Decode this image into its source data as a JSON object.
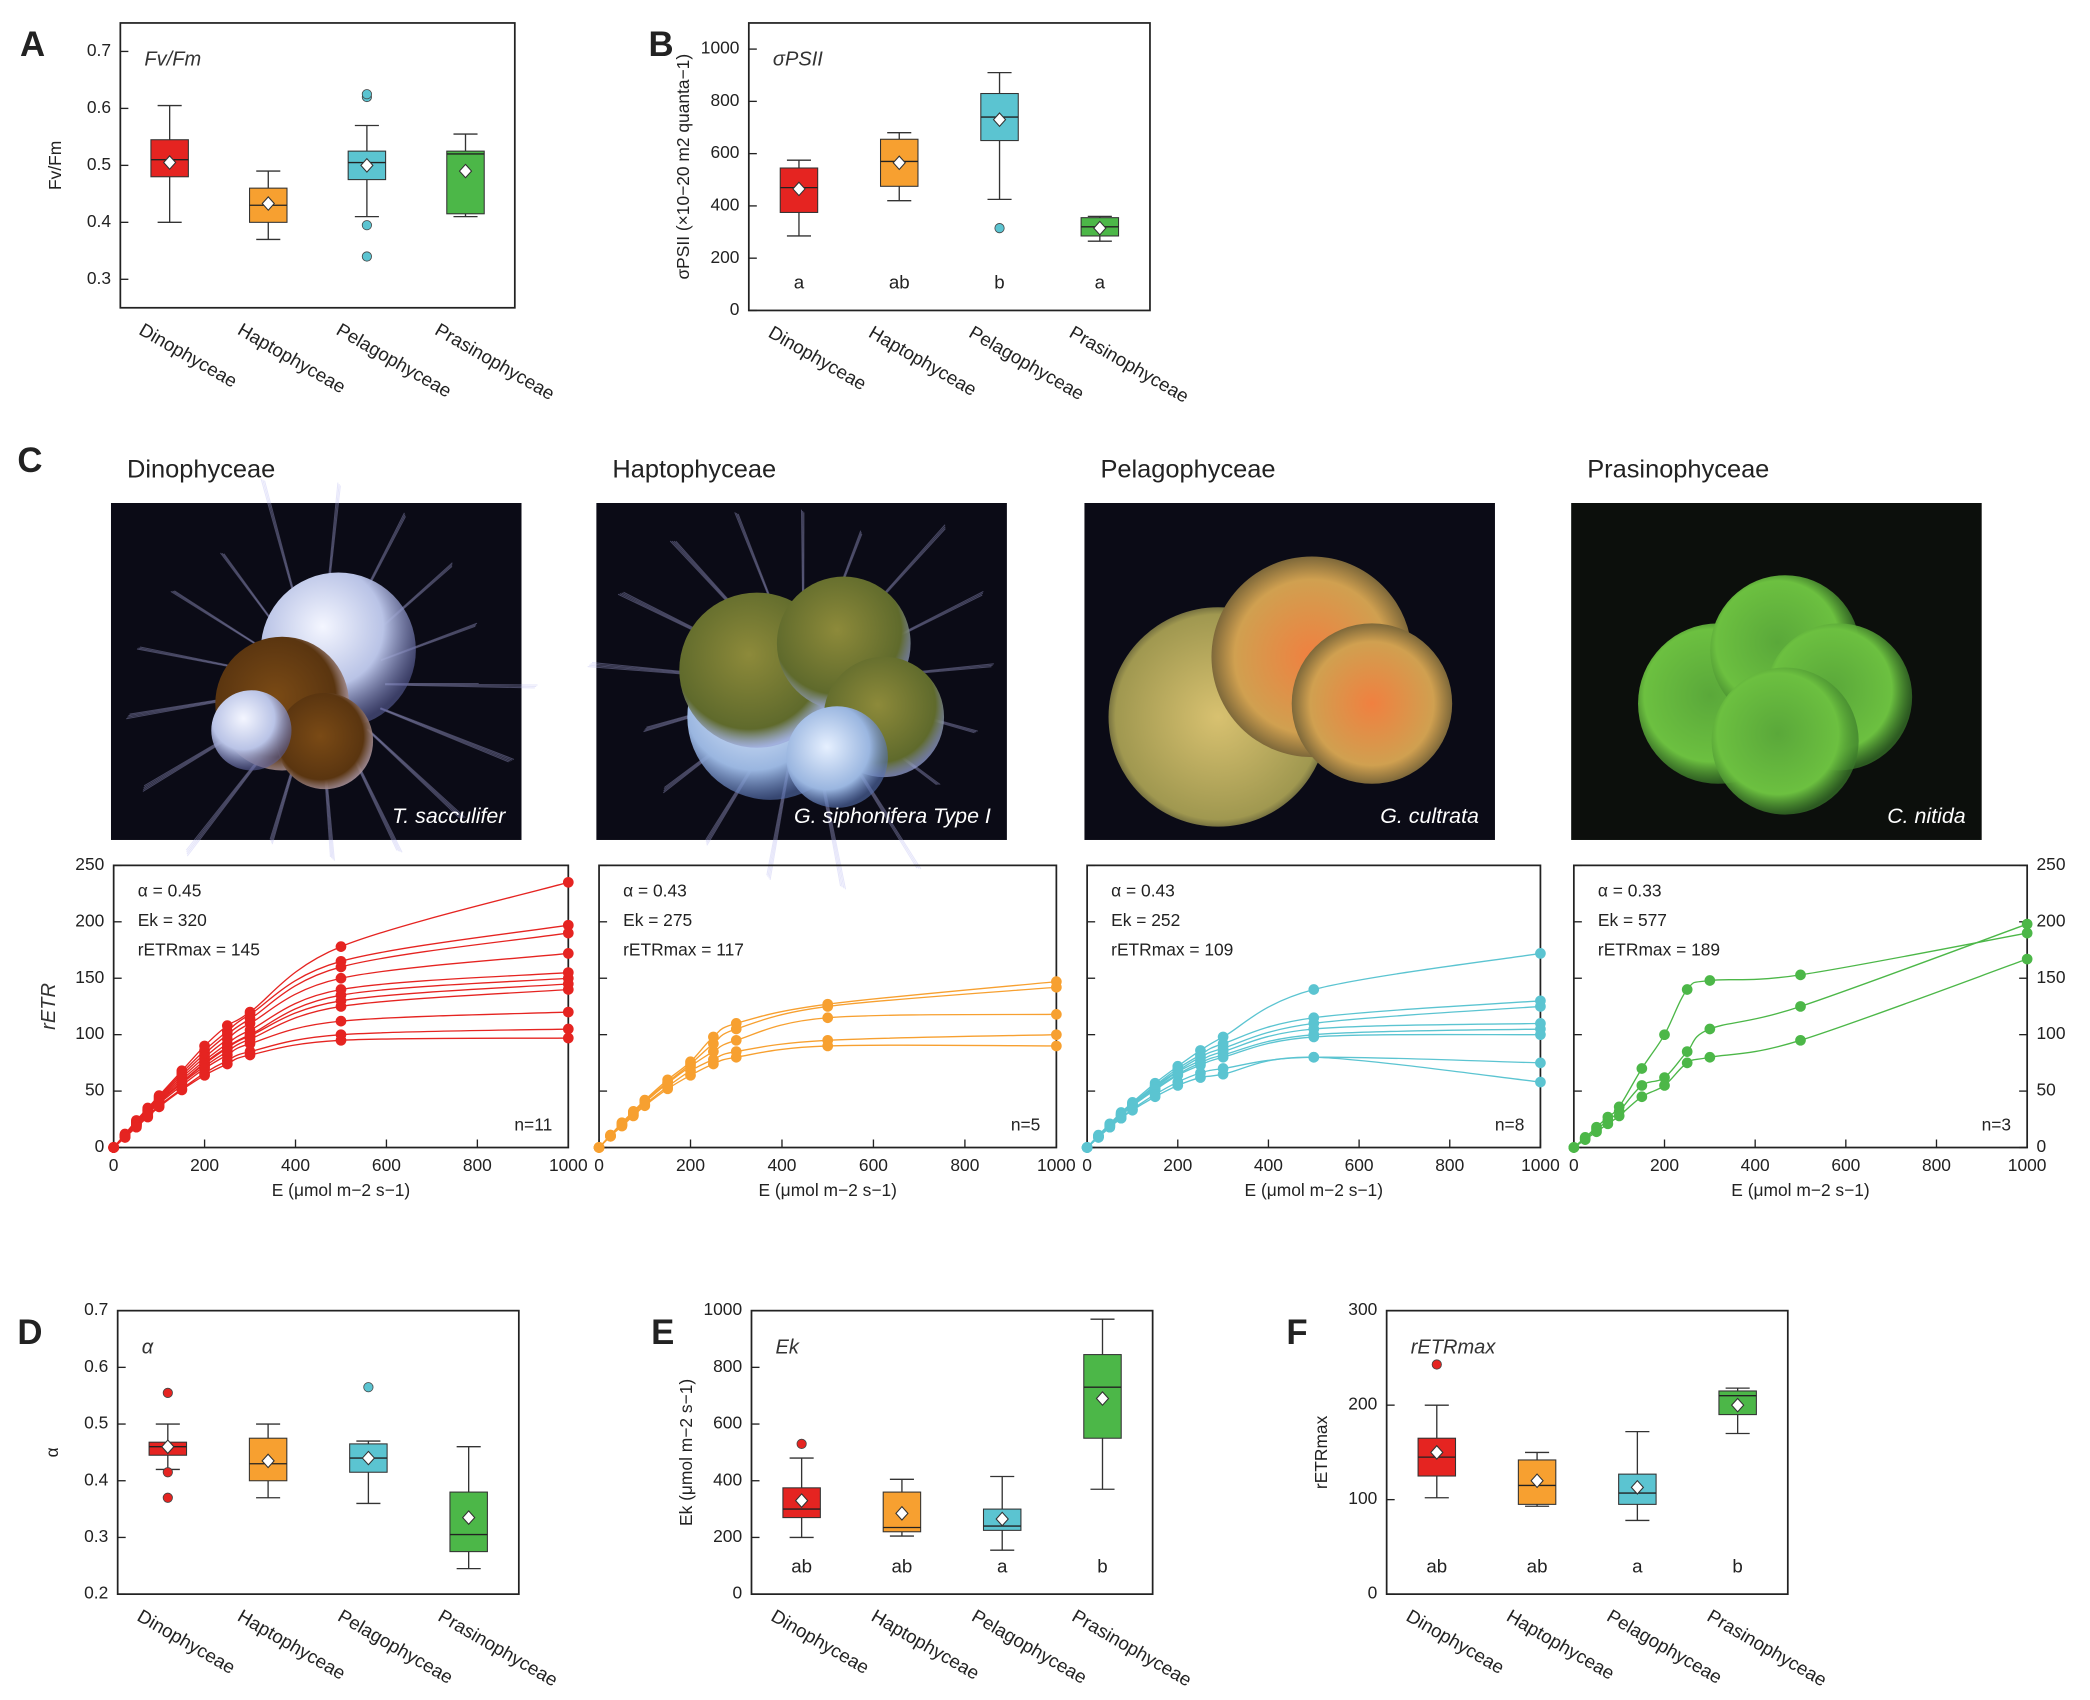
{
  "chart_data": [
    {
      "type": "box",
      "panel": "A",
      "annotation": "Fv/Fm",
      "ylabel": "Fv/Fm",
      "categories": [
        "Dinophyceae",
        "Haptophyceae",
        "Pelagophyceae",
        "Prasinophyceae"
      ],
      "colors": [
        "#e52421",
        "#f7a030",
        "#5bc4d1",
        "#4cb748"
      ],
      "ylim": [
        0.25,
        0.75
      ],
      "yticks": [
        0.3,
        0.4,
        0.5,
        0.6,
        0.7
      ],
      "boxes": [
        {
          "whislo": 0.4,
          "q1": 0.48,
          "med": 0.51,
          "q3": 0.545,
          "whishi": 0.605,
          "mean": 0.505,
          "fliers": []
        },
        {
          "whislo": 0.37,
          "q1": 0.4,
          "med": 0.43,
          "q3": 0.46,
          "whishi": 0.49,
          "mean": 0.433,
          "fliers": []
        },
        {
          "whislo": 0.41,
          "q1": 0.475,
          "med": 0.505,
          "q3": 0.525,
          "whishi": 0.57,
          "mean": 0.5,
          "fliers": [
            0.62,
            0.625,
            0.395,
            0.34
          ]
        },
        {
          "whislo": 0.41,
          "q1": 0.415,
          "med": 0.52,
          "q3": 0.525,
          "whishi": 0.555,
          "mean": 0.49,
          "fliers": []
        }
      ]
    },
    {
      "type": "box",
      "panel": "B",
      "annotation": "σPSII",
      "ylabel": "σPSII (×10−20 m2 quanta−1)",
      "categories": [
        "Dinophyceae",
        "Haptophyceae",
        "Pelagophyceae",
        "Prasinophyceae"
      ],
      "colors": [
        "#e52421",
        "#f7a030",
        "#5bc4d1",
        "#4cb748"
      ],
      "ylim": [
        0,
        1100
      ],
      "yticks": [
        0,
        200,
        400,
        600,
        800,
        1000
      ],
      "letters": [
        "a",
        "ab",
        "b",
        "a"
      ],
      "boxes": [
        {
          "whislo": 285,
          "q1": 375,
          "med": 470,
          "q3": 545,
          "whishi": 575,
          "mean": 465,
          "fliers": []
        },
        {
          "whislo": 420,
          "q1": 475,
          "med": 570,
          "q3": 655,
          "whishi": 680,
          "mean": 565,
          "fliers": []
        },
        {
          "whislo": 425,
          "q1": 650,
          "med": 740,
          "q3": 830,
          "whishi": 910,
          "mean": 730,
          "fliers": [
            315
          ]
        },
        {
          "whislo": 265,
          "q1": 285,
          "med": 320,
          "q3": 355,
          "whishi": 360,
          "mean": 315,
          "fliers": []
        }
      ]
    },
    {
      "type": "line",
      "panel": "C",
      "title": "Dinophyceae",
      "image_caption": "T. sacculifer",
      "stats": [
        "α = 0.45",
        "Ek = 320",
        "rETRmax = 145"
      ],
      "n_label": "n=11",
      "xlabel": "E  (μmol m−2 s−1)",
      "ylabel": "rETR",
      "yaxis_labels": "left",
      "color": "#e52421",
      "x": [
        0,
        25,
        50,
        75,
        100,
        150,
        200,
        250,
        300,
        500,
        1000
      ],
      "xlim": [
        0,
        1000
      ],
      "xticks": [
        0,
        200,
        400,
        600,
        800,
        1000
      ],
      "ylim": [
        0,
        250
      ],
      "yticks": [
        0,
        50,
        100,
        150,
        200,
        250
      ],
      "series": [
        {
          "values": [
            0,
            12,
            24,
            35,
            46,
            68,
            90,
            108,
            120,
            178,
            235
          ]
        },
        {
          "values": [
            0,
            11,
            23,
            34,
            45,
            66,
            86,
            103,
            118,
            165,
            197
          ]
        },
        {
          "values": [
            0,
            11,
            22,
            33,
            44,
            64,
            83,
            100,
            114,
            160,
            190
          ]
        },
        {
          "values": [
            0,
            11,
            22,
            33,
            43,
            62,
            80,
            96,
            110,
            150,
            172
          ]
        },
        {
          "values": [
            0,
            11,
            22,
            32,
            42,
            60,
            77,
            92,
            104,
            140,
            155
          ]
        },
        {
          "values": [
            0,
            10,
            21,
            31,
            41,
            58,
            75,
            89,
            100,
            135,
            150
          ]
        },
        {
          "values": [
            0,
            10,
            21,
            31,
            41,
            58,
            74,
            88,
            99,
            130,
            145
          ]
        },
        {
          "values": [
            0,
            10,
            20,
            30,
            40,
            57,
            72,
            85,
            96,
            125,
            140
          ]
        },
        {
          "values": [
            0,
            10,
            20,
            30,
            39,
            55,
            70,
            82,
            92,
            112,
            120
          ]
        },
        {
          "values": [
            0,
            9,
            19,
            28,
            37,
            52,
            66,
            77,
            85,
            100,
            105
          ]
        },
        {
          "values": [
            0,
            9,
            18,
            27,
            36,
            51,
            64,
            74,
            82,
            95,
            97
          ]
        }
      ]
    },
    {
      "type": "line",
      "title": "Haptophyceae",
      "image_caption": "G. siphonifera Type I",
      "stats": [
        "α = 0.43",
        "Ek = 275",
        "rETRmax = 117"
      ],
      "n_label": "n=5",
      "xlabel": "E  (μmol m−2 s−1)",
      "yaxis_labels": "none",
      "color": "#f7a030",
      "x": [
        0,
        25,
        50,
        75,
        100,
        150,
        200,
        250,
        300,
        500,
        1000
      ],
      "xlim": [
        0,
        1000
      ],
      "xticks": [
        0,
        200,
        400,
        600,
        800,
        1000
      ],
      "ylim": [
        0,
        250
      ],
      "yticks": [
        0,
        50,
        100,
        150,
        200,
        250
      ],
      "series": [
        {
          "values": [
            0,
            11,
            22,
            32,
            42,
            60,
            76,
            98,
            110,
            127,
            147
          ]
        },
        {
          "values": [
            0,
            11,
            21,
            31,
            41,
            58,
            74,
            92,
            105,
            125,
            142
          ]
        },
        {
          "values": [
            0,
            10,
            20,
            30,
            40,
            57,
            72,
            85,
            95,
            115,
            118
          ]
        },
        {
          "values": [
            0,
            10,
            20,
            29,
            38,
            54,
            68,
            78,
            85,
            95,
            100
          ]
        },
        {
          "values": [
            0,
            10,
            19,
            28,
            37,
            52,
            64,
            74,
            80,
            90,
            90
          ]
        }
      ]
    },
    {
      "type": "line",
      "title": "Pelagophyceae",
      "image_caption": "G. cultrata",
      "stats": [
        "α = 0.43",
        "Ek = 252",
        "rETRmax = 109"
      ],
      "n_label": "n=8",
      "xlabel": "E  (μmol m−2 s−1)",
      "yaxis_labels": "none",
      "color": "#5bc4d1",
      "x": [
        0,
        25,
        50,
        75,
        100,
        150,
        200,
        250,
        300,
        500,
        1000
      ],
      "xlim": [
        0,
        1000
      ],
      "xticks": [
        0,
        200,
        400,
        600,
        800,
        1000
      ],
      "ylim": [
        0,
        250
      ],
      "yticks": [
        0,
        50,
        100,
        150,
        200,
        250
      ],
      "series": [
        {
          "values": [
            0,
            11,
            21,
            31,
            40,
            57,
            72,
            86,
            98,
            140,
            172
          ]
        },
        {
          "values": [
            0,
            10,
            20,
            30,
            39,
            55,
            70,
            82,
            92,
            115,
            130
          ]
        },
        {
          "values": [
            0,
            10,
            20,
            29,
            38,
            54,
            68,
            80,
            88,
            110,
            125
          ]
        },
        {
          "values": [
            0,
            10,
            20,
            29,
            38,
            53,
            67,
            77,
            85,
            105,
            110
          ]
        },
        {
          "values": [
            0,
            10,
            19,
            28,
            37,
            52,
            65,
            75,
            82,
            100,
            105
          ]
        },
        {
          "values": [
            0,
            10,
            19,
            28,
            37,
            51,
            64,
            73,
            80,
            98,
            100
          ]
        },
        {
          "values": [
            0,
            9,
            18,
            26,
            34,
            47,
            58,
            66,
            70,
            80,
            75
          ]
        },
        {
          "values": [
            0,
            9,
            18,
            26,
            33,
            45,
            55,
            62,
            65,
            80,
            58
          ]
        }
      ]
    },
    {
      "type": "line",
      "title": "Prasinophyceae",
      "image_caption": "C. nitida",
      "stats": [
        "α = 0.33",
        "Ek = 577",
        "rETRmax = 189"
      ],
      "n_label": "n=3",
      "xlabel": "E  (μmol m−2 s−1)",
      "yaxis_labels": "right",
      "color": "#4cb748",
      "x": [
        0,
        25,
        50,
        75,
        100,
        150,
        200,
        250,
        300,
        500,
        1000
      ],
      "xlim": [
        0,
        1000
      ],
      "xticks": [
        0,
        200,
        400,
        600,
        800,
        1000
      ],
      "ylim": [
        0,
        250
      ],
      "yticks": [
        0,
        50,
        100,
        150,
        200,
        250
      ],
      "series": [
        {
          "values": [
            0,
            9,
            18,
            27,
            36,
            70,
            100,
            140,
            148,
            153,
            190
          ]
        },
        {
          "values": [
            0,
            8,
            16,
            24,
            32,
            55,
            62,
            85,
            105,
            125,
            198
          ]
        },
        {
          "values": [
            0,
            7,
            14,
            21,
            28,
            45,
            55,
            75,
            80,
            95,
            167
          ]
        }
      ]
    },
    {
      "type": "box",
      "panel": "D",
      "annotation": "α",
      "ylabel": "α",
      "categories": [
        "Dinophyceae",
        "Haptophyceae",
        "Pelagophyceae",
        "Prasinophyceae"
      ],
      "colors": [
        "#e52421",
        "#f7a030",
        "#5bc4d1",
        "#4cb748"
      ],
      "ylim": [
        0.2,
        0.7
      ],
      "yticks": [
        0.2,
        0.3,
        0.4,
        0.5,
        0.6,
        0.7
      ],
      "boxes": [
        {
          "whislo": 0.42,
          "q1": 0.445,
          "med": 0.46,
          "q3": 0.468,
          "whishi": 0.5,
          "mean": 0.46,
          "fliers": [
            0.555,
            0.415,
            0.37
          ]
        },
        {
          "whislo": 0.37,
          "q1": 0.4,
          "med": 0.43,
          "q3": 0.475,
          "whishi": 0.5,
          "mean": 0.435,
          "fliers": []
        },
        {
          "whislo": 0.36,
          "q1": 0.415,
          "med": 0.44,
          "q3": 0.465,
          "whishi": 0.47,
          "mean": 0.44,
          "fliers": [
            0.565
          ]
        },
        {
          "whislo": 0.245,
          "q1": 0.275,
          "med": 0.305,
          "q3": 0.38,
          "whishi": 0.46,
          "mean": 0.335,
          "fliers": []
        }
      ]
    },
    {
      "type": "box",
      "panel": "E",
      "annotation": "Ek",
      "ylabel": "Ek (μmol m−2 s−1)",
      "categories": [
        "Dinophyceae",
        "Haptophyceae",
        "Pelagophyceae",
        "Prasinophyceae"
      ],
      "colors": [
        "#e52421",
        "#f7a030",
        "#5bc4d1",
        "#4cb748"
      ],
      "ylim": [
        0,
        1000
      ],
      "yticks": [
        0,
        200,
        400,
        600,
        800,
        1000
      ],
      "letters": [
        "ab",
        "ab",
        "a",
        "b"
      ],
      "boxes": [
        {
          "whislo": 200,
          "q1": 270,
          "med": 300,
          "q3": 375,
          "whishi": 480,
          "mean": 330,
          "fliers": [
            530
          ]
        },
        {
          "whislo": 205,
          "q1": 220,
          "med": 235,
          "q3": 360,
          "whishi": 405,
          "mean": 285,
          "fliers": []
        },
        {
          "whislo": 155,
          "q1": 225,
          "med": 240,
          "q3": 300,
          "whishi": 415,
          "mean": 265,
          "fliers": []
        },
        {
          "whislo": 370,
          "q1": 550,
          "med": 730,
          "q3": 845,
          "whishi": 970,
          "mean": 690,
          "fliers": []
        }
      ]
    },
    {
      "type": "box",
      "panel": "F",
      "annotation": "rETRmax",
      "ylabel": "rETRmax",
      "categories": [
        "Dinophyceae",
        "Haptophyceae",
        "Pelagophyceae",
        "Prasinophyceae"
      ],
      "colors": [
        "#e52421",
        "#f7a030",
        "#5bc4d1",
        "#4cb748"
      ],
      "ylim": [
        0,
        300
      ],
      "yticks": [
        0,
        100,
        200,
        300
      ],
      "letters": [
        "ab",
        "ab",
        "a",
        "b"
      ],
      "boxes": [
        {
          "whislo": 102,
          "q1": 125,
          "med": 145,
          "q3": 165,
          "whishi": 200,
          "mean": 150,
          "fliers": [
            243
          ]
        },
        {
          "whislo": 93,
          "q1": 95,
          "med": 115,
          "q3": 142,
          "whishi": 150,
          "mean": 120,
          "fliers": []
        },
        {
          "whislo": 78,
          "q1": 95,
          "med": 107,
          "q3": 127,
          "whishi": 172,
          "mean": 113,
          "fliers": []
        },
        {
          "whislo": 170,
          "q1": 190,
          "med": 210,
          "q3": 215,
          "whishi": 218,
          "mean": 200,
          "fliers": []
        }
      ]
    }
  ]
}
